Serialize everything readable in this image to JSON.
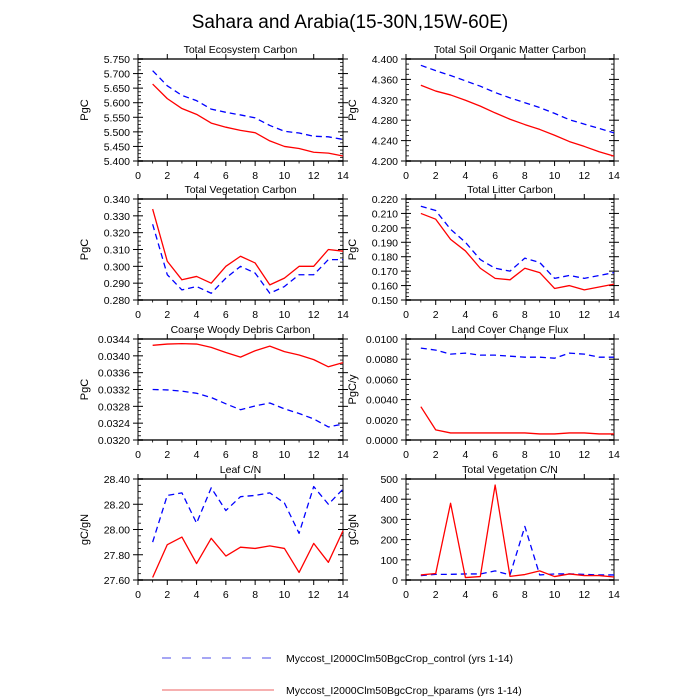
{
  "figure": {
    "title": "Sahara and Arabia(15-30N,15W-60E)"
  },
  "colors": {
    "control": "#0000ff",
    "kparams": "#ff0000",
    "legend_control": "#7070ee",
    "legend_kparams": "#f08080",
    "frame": "#555555"
  },
  "legend": {
    "items": [
      {
        "series": "control",
        "style": "dashed",
        "label": "Myccost_I2000Clm50BgcCrop_control (yrs 1-14)"
      },
      {
        "series": "kparams",
        "style": "solid",
        "label": "Myccost_I2000Clm50BgcCrop_kparams (yrs 1-14)"
      }
    ]
  },
  "chart_data": [
    {
      "type": "line",
      "title": "Total Ecosystem Carbon",
      "xlabel": "",
      "ylabel": "PgC",
      "xlim": [
        0,
        14
      ],
      "ylim": [
        5.4,
        5.75
      ],
      "xticks": [
        0,
        2,
        4,
        6,
        8,
        10,
        12,
        14
      ],
      "yticks": [
        "5.400",
        "5.450",
        "5.500",
        "5.550",
        "5.600",
        "5.650",
        "5.700",
        "5.750"
      ],
      "x": [
        1,
        2,
        3,
        4,
        5,
        6,
        7,
        8,
        9,
        10,
        11,
        12,
        13,
        14
      ],
      "series": [
        {
          "name": "control",
          "values": [
            5.71,
            5.658,
            5.625,
            5.607,
            5.578,
            5.567,
            5.558,
            5.548,
            5.522,
            5.502,
            5.496,
            5.485,
            5.483,
            5.474
          ]
        },
        {
          "name": "kparams",
          "values": [
            5.664,
            5.614,
            5.58,
            5.56,
            5.53,
            5.516,
            5.505,
            5.497,
            5.469,
            5.45,
            5.443,
            5.43,
            5.427,
            5.417
          ]
        }
      ]
    },
    {
      "type": "line",
      "title": "Total Soil Organic Matter Carbon",
      "xlabel": "",
      "ylabel": "PgC",
      "xlim": [
        0,
        14
      ],
      "ylim": [
        4.2,
        4.41
      ],
      "xticks": [
        0,
        2,
        4,
        6,
        8,
        10,
        12,
        14
      ],
      "yticks": [
        "4.200",
        "4.240",
        "4.280",
        "4.320",
        "4.360",
        "4.400"
      ],
      "x": [
        1,
        2,
        3,
        4,
        5,
        6,
        7,
        8,
        9,
        10,
        11,
        12,
        13,
        14
      ],
      "series": [
        {
          "name": "control",
          "values": [
            4.397,
            4.386,
            4.376,
            4.365,
            4.354,
            4.341,
            4.33,
            4.32,
            4.31,
            4.298,
            4.285,
            4.276,
            4.267,
            4.258
          ]
        },
        {
          "name": "kparams",
          "values": [
            4.356,
            4.344,
            4.336,
            4.325,
            4.313,
            4.299,
            4.286,
            4.275,
            4.265,
            4.253,
            4.24,
            4.23,
            4.219,
            4.21
          ]
        }
      ]
    },
    {
      "type": "line",
      "title": "Total Vegetation Carbon",
      "xlabel": "",
      "ylabel": "PgC",
      "xlim": [
        0,
        14
      ],
      "ylim": [
        0.28,
        0.34
      ],
      "xticks": [
        0,
        2,
        4,
        6,
        8,
        10,
        12,
        14
      ],
      "yticks": [
        "0.280",
        "0.290",
        "0.300",
        "0.310",
        "0.320",
        "0.330",
        "0.340"
      ],
      "x": [
        1,
        2,
        3,
        4,
        5,
        6,
        7,
        8,
        9,
        10,
        11,
        12,
        13,
        14
      ],
      "series": [
        {
          "name": "control",
          "values": [
            0.325,
            0.295,
            0.286,
            0.288,
            0.284,
            0.293,
            0.3,
            0.296,
            0.284,
            0.288,
            0.295,
            0.295,
            0.304,
            0.304
          ]
        },
        {
          "name": "kparams",
          "values": [
            0.334,
            0.303,
            0.292,
            0.294,
            0.29,
            0.3,
            0.306,
            0.302,
            0.289,
            0.293,
            0.3,
            0.3,
            0.31,
            0.309
          ]
        }
      ]
    },
    {
      "type": "line",
      "title": "Total Litter Carbon",
      "xlabel": "",
      "ylabel": "PgC",
      "xlim": [
        0,
        14
      ],
      "ylim": [
        0.15,
        0.22
      ],
      "xticks": [
        0,
        2,
        4,
        6,
        8,
        10,
        12,
        14
      ],
      "yticks": [
        "0.150",
        "0.160",
        "0.170",
        "0.180",
        "0.190",
        "0.200",
        "0.210",
        "0.220"
      ],
      "x": [
        1,
        2,
        3,
        4,
        5,
        6,
        7,
        8,
        9,
        10,
        11,
        12,
        13,
        14
      ],
      "series": [
        {
          "name": "control",
          "values": [
            0.215,
            0.212,
            0.199,
            0.19,
            0.178,
            0.172,
            0.17,
            0.179,
            0.176,
            0.165,
            0.167,
            0.165,
            0.167,
            0.169
          ]
        },
        {
          "name": "kparams",
          "values": [
            0.21,
            0.206,
            0.192,
            0.184,
            0.172,
            0.165,
            0.164,
            0.172,
            0.169,
            0.158,
            0.16,
            0.157,
            0.159,
            0.161
          ]
        }
      ]
    },
    {
      "type": "line",
      "title": "Coarse Woody Debris Carbon",
      "xlabel": "",
      "ylabel": "PgC",
      "xlim": [
        0,
        14
      ],
      "ylim": [
        0.032,
        0.0344
      ],
      "xticks": [
        0,
        2,
        4,
        6,
        8,
        10,
        12,
        14
      ],
      "yticks": [
        "0.0320",
        "0.0324",
        "0.0328",
        "0.0332",
        "0.0336",
        "0.0340",
        "0.0344"
      ],
      "x": [
        1,
        2,
        3,
        4,
        5,
        6,
        7,
        8,
        9,
        10,
        11,
        12,
        13,
        14
      ],
      "series": [
        {
          "name": "control",
          "values": [
            0.0332,
            0.03319,
            0.03316,
            0.03311,
            0.03301,
            0.03286,
            0.03272,
            0.03281,
            0.03288,
            0.03274,
            0.03263,
            0.0325,
            0.03231,
            0.03238
          ]
        },
        {
          "name": "kparams",
          "values": [
            0.03425,
            0.03428,
            0.03429,
            0.03428,
            0.0342,
            0.03408,
            0.03397,
            0.03412,
            0.03423,
            0.0341,
            0.03402,
            0.03391,
            0.03374,
            0.03384
          ]
        }
      ]
    },
    {
      "type": "line",
      "title": "Land Cover Change Flux",
      "xlabel": "",
      "ylabel": "PgC/y",
      "xlim": [
        0,
        14
      ],
      "ylim": [
        0,
        0.01
      ],
      "xticks": [
        0,
        2,
        4,
        6,
        8,
        10,
        12,
        14
      ],
      "yticks": [
        "0.0000",
        "0.0020",
        "0.0040",
        "0.0060",
        "0.0080",
        "0.0100"
      ],
      "x": [
        1,
        2,
        3,
        4,
        5,
        6,
        7,
        8,
        9,
        10,
        11,
        12,
        13,
        14
      ],
      "series": [
        {
          "name": "control",
          "values": [
            0.0091,
            0.0089,
            0.0085,
            0.0086,
            0.0084,
            0.0084,
            0.0083,
            0.0082,
            0.0082,
            0.0081,
            0.0086,
            0.0085,
            0.0082,
            0.0082
          ]
        },
        {
          "name": "kparams",
          "values": [
            0.0033,
            0.001,
            0.0007,
            0.0007,
            0.0007,
            0.0007,
            0.0007,
            0.0007,
            0.0006,
            0.0006,
            0.0007,
            0.0007,
            0.0006,
            0.0006
          ]
        }
      ]
    },
    {
      "type": "line",
      "title": "Leaf C/N",
      "xlabel": "",
      "ylabel": "gC/gN",
      "xlim": [
        0,
        14
      ],
      "ylim": [
        27.6,
        28.4
      ],
      "xticks": [
        0,
        2,
        4,
        6,
        8,
        10,
        12,
        14
      ],
      "yticks": [
        "27.60",
        "27.80",
        "28.00",
        "28.20",
        "28.40"
      ],
      "x": [
        1,
        2,
        3,
        4,
        5,
        6,
        7,
        8,
        9,
        10,
        11,
        12,
        13,
        14
      ],
      "series": [
        {
          "name": "control",
          "values": [
            27.9,
            28.27,
            28.29,
            28.05,
            28.33,
            28.15,
            28.26,
            28.27,
            28.29,
            28.21,
            27.97,
            28.34,
            28.2,
            28.32
          ]
        },
        {
          "name": "kparams",
          "values": [
            27.62,
            27.88,
            27.94,
            27.73,
            27.93,
            27.79,
            27.86,
            27.85,
            27.87,
            27.85,
            27.66,
            27.89,
            27.74,
            27.99
          ]
        }
      ]
    },
    {
      "type": "line",
      "title": "Total Vegetation C/N",
      "xlabel": "",
      "ylabel": "gC/gN",
      "xlim": [
        0,
        14
      ],
      "ylim": [
        0,
        500
      ],
      "xticks": [
        0,
        2,
        4,
        6,
        8,
        10,
        12,
        14
      ],
      "yticks": [
        "0",
        "100",
        "200",
        "300",
        "400",
        "500"
      ],
      "x": [
        1,
        2,
        3,
        4,
        5,
        6,
        7,
        8,
        9,
        10,
        11,
        12,
        13,
        14
      ],
      "series": [
        {
          "name": "control",
          "values": [
            22,
            28,
            28,
            30,
            30,
            45,
            25,
            265,
            25,
            30,
            30,
            28,
            25,
            25
          ]
        },
        {
          "name": "kparams",
          "values": [
            25,
            32,
            380,
            12,
            17,
            470,
            18,
            27,
            45,
            17,
            30,
            22,
            22,
            15
          ]
        }
      ]
    }
  ]
}
